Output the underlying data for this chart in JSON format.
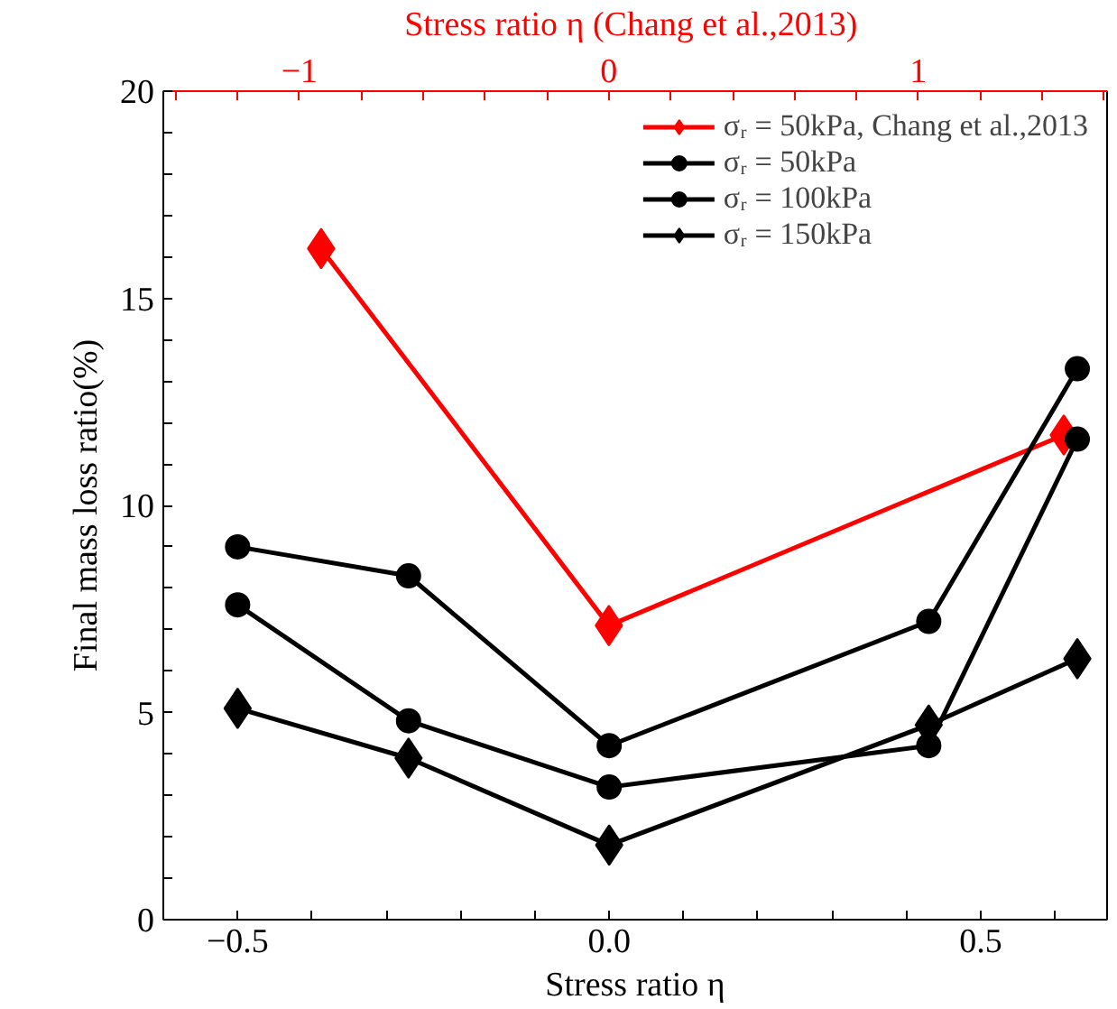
{
  "chart_data": {
    "type": "line",
    "xlabel": "Stress ratio η",
    "x2label": "Stress ratio η  (Chang et al.,2013)",
    "ylabel": "Final mass loss ratio(%)",
    "xlim": [
      -0.6,
      0.67
    ],
    "x2lim": [
      -1.44,
      1.61
    ],
    "ylim": [
      0,
      20
    ],
    "xticks": [
      {
        "value": -0.6,
        "label": null
      },
      {
        "value": -0.5,
        "label": "−0.5"
      },
      {
        "value": -0.4,
        "label": null
      },
      {
        "value": -0.3,
        "label": null
      },
      {
        "value": -0.2,
        "label": null
      },
      {
        "value": -0.1,
        "label": null
      },
      {
        "value": 0,
        "label": "0.0"
      },
      {
        "value": 0.1,
        "label": null
      },
      {
        "value": 0.2,
        "label": null
      },
      {
        "value": 0.3,
        "label": null
      },
      {
        "value": 0.4,
        "label": null
      },
      0.5,
      {
        "value": 0.6,
        "label": null
      }
    ],
    "x2ticks": [
      {
        "value": -1.4,
        "label": null
      },
      {
        "value": -1.2,
        "label": null
      },
      {
        "value": -1,
        "label": "−1"
      },
      {
        "value": -0.8,
        "label": null
      },
      {
        "value": -0.6,
        "label": null
      },
      {
        "value": -0.4,
        "label": null
      },
      {
        "value": -0.2,
        "label": null
      },
      0,
      {
        "value": 0.2,
        "label": null
      },
      {
        "value": 0.4,
        "label": null
      },
      {
        "value": 0.6,
        "label": null
      },
      {
        "value": 0.8,
        "label": null
      },
      1,
      {
        "value": 1.2,
        "label": null
      },
      {
        "value": 1.4,
        "label": null
      },
      {
        "value": 1.6,
        "label": null
      }
    ],
    "yticks": [
      0,
      {
        "value": 1,
        "label": null
      },
      {
        "value": 2,
        "label": null
      },
      {
        "value": 3,
        "label": null
      },
      {
        "value": 4,
        "label": null
      },
      5,
      {
        "value": 6,
        "label": null
      },
      {
        "value": 7,
        "label": null
      },
      {
        "value": 8,
        "label": null
      },
      {
        "value": 9,
        "label": null
      },
      10,
      {
        "value": 11,
        "label": null
      },
      {
        "value": 12,
        "label": null
      },
      {
        "value": 13,
        "label": null
      },
      {
        "value": 14,
        "label": null
      },
      15,
      {
        "value": 16,
        "label": null
      },
      {
        "value": 17,
        "label": null
      },
      {
        "value": 18,
        "label": null
      },
      {
        "value": 19,
        "label": null
      },
      20
    ],
    "grid": false,
    "legend": "top right",
    "line_style": "solid",
    "series": [
      {
        "name": "σᵣ = 50kPa, Chang et al.,2013",
        "color": "#ff0000",
        "axis": "x2",
        "marker": "diamond",
        "x": [
          -0.93,
          0,
          1.47
        ],
        "values": [
          16.2,
          7.1,
          11.7
        ]
      },
      {
        "name": "σᵣ = 50kPa",
        "color": "#000000",
        "marker": "circle",
        "x": [
          -0.5,
          -0.27,
          0,
          0.43,
          0.63
        ],
        "values": [
          9.0,
          8.3,
          4.2,
          7.2,
          13.3
        ]
      },
      {
        "name": "σᵣ = 100kPa",
        "color": "#000000",
        "marker": "circle",
        "x": [
          -0.5,
          -0.27,
          0,
          0.43,
          0.63
        ],
        "values": [
          7.6,
          4.8,
          3.2,
          4.2,
          11.6
        ]
      },
      {
        "name": "σᵣ = 150kPa",
        "color": "#000000",
        "marker": "diamond",
        "x": [
          -0.5,
          -0.27,
          0,
          0.43,
          0.63
        ],
        "values": [
          5.1,
          3.9,
          1.8,
          4.7,
          6.3
        ]
      }
    ]
  }
}
